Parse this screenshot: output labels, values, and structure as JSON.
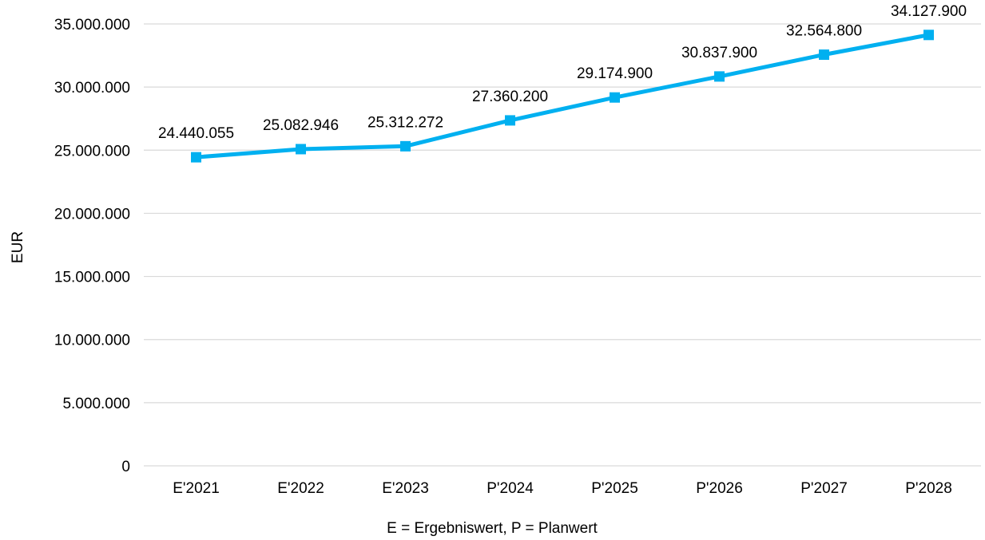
{
  "chart_data": {
    "type": "line",
    "title": "",
    "xlabel": "E = Ergebniswert, P = Planwert",
    "ylabel": "EUR",
    "categories": [
      "E'2021",
      "E'2022",
      "E'2023",
      "P'2024",
      "P'2025",
      "P'2026",
      "P'2027",
      "P'2028"
    ],
    "series": [
      {
        "values": [
          24440055,
          25082946,
          25312272,
          27360200,
          29174900,
          30837900,
          32564800,
          34127900
        ],
        "value_labels": [
          "24.440.055",
          "25.082.946",
          "25.312.272",
          "27.360.200",
          "29.174.900",
          "30.837.900",
          "32.564.800",
          "34.127.900"
        ],
        "color": "#00b0f0",
        "marker": "square"
      }
    ],
    "ylim": [
      0,
      35000000
    ],
    "yticks": [
      0,
      5000000,
      10000000,
      15000000,
      20000000,
      25000000,
      30000000,
      35000000
    ],
    "ytick_labels": [
      "0",
      "5.000.000",
      "10.000.000",
      "15.000.000",
      "20.000.000",
      "25.000.000",
      "30.000.000",
      "35.000.000"
    ],
    "grid": true,
    "legend": "none"
  }
}
